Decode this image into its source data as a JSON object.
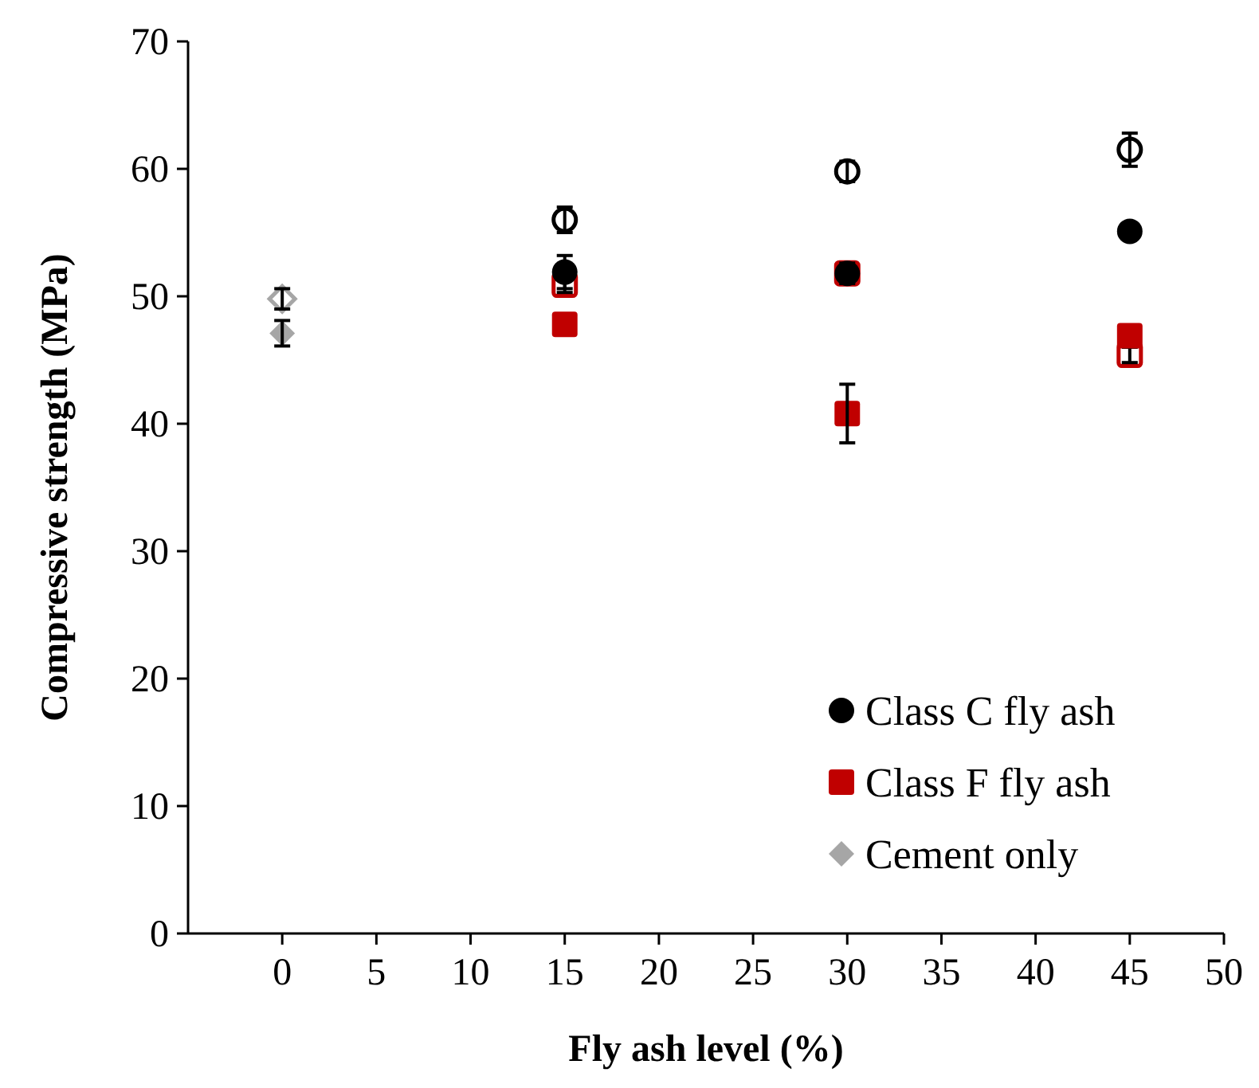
{
  "chart_data": {
    "type": "scatter",
    "xlabel": "Fly ash level (%)",
    "ylabel": "Compressive strength (MPa)",
    "xlim": [
      -5,
      50
    ],
    "xticks": [
      0,
      5,
      10,
      15,
      20,
      25,
      30,
      35,
      40,
      45,
      50
    ],
    "ylim": [
      0,
      70
    ],
    "yticks": [
      0,
      10,
      20,
      30,
      40,
      50,
      60,
      70
    ],
    "grid": false,
    "legend": "bottom right",
    "series": [
      {
        "color": "#000000",
        "marker": "circle",
        "x": [
          15,
          30,
          45
        ],
        "values": [
          56,
          59.8,
          61.5
        ],
        "errors": [
          1,
          0.8,
          1.3
        ]
      },
      {
        "color": "#c00000",
        "marker": "square",
        "x": [
          15,
          30,
          45
        ],
        "values": [
          50.9,
          51.8,
          45.4
        ],
        "errors": [
          0.6,
          null,
          0.6
        ]
      },
      {
        "color": "#a6a6a6",
        "marker": "diamond",
        "x": [
          0
        ],
        "values": [
          49.8
        ],
        "errors": [
          0.8
        ]
      },
      {
        "name": "Class C fly ash",
        "color": "#000000",
        "marker": "circle",
        "x": [
          15,
          30,
          45
        ],
        "values": [
          51.9,
          51.8,
          55.1
        ],
        "errors": [
          1.3,
          0.8,
          null
        ]
      },
      {
        "name": "Class F fly ash",
        "color": "#c00000",
        "marker": "square",
        "x": [
          15,
          30,
          45
        ],
        "values": [
          47.8,
          40.8,
          46.9
        ],
        "errors": [
          null,
          2.3,
          null
        ]
      },
      {
        "name": "Cement only",
        "color": "#a6a6a6",
        "marker": "diamond",
        "x": [
          0
        ],
        "values": [
          47.1
        ],
        "errors": [
          1
        ]
      }
    ]
  }
}
